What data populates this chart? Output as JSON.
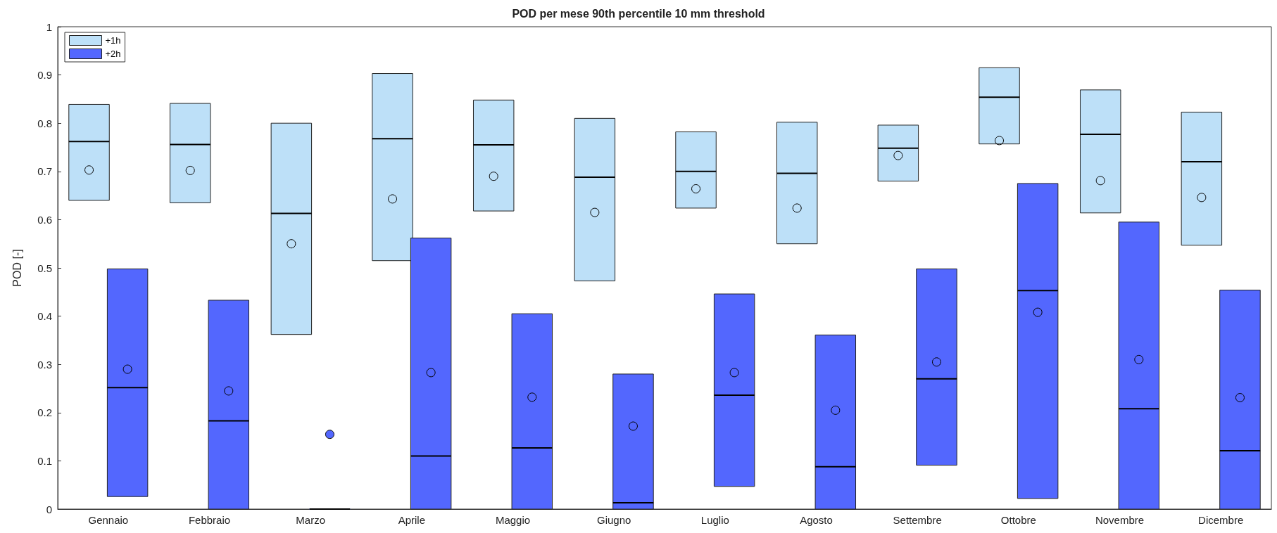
{
  "chart_data": {
    "type": "box",
    "title": "POD per mese 90th percentile 10 mm threshold",
    "ylabel": "POD [-]",
    "categories": [
      "Gennaio",
      "Febbraio",
      "Marzo",
      "Aprile",
      "Maggio",
      "Giugno",
      "Luglio",
      "Agosto",
      "Settembre",
      "Ottobre",
      "Novembre",
      "Dicembre"
    ],
    "series": [
      {
        "name": "+1h",
        "color": "#bde0f8",
        "boxes": [
          {
            "low": 0.64,
            "q1": 0.64,
            "median": 0.762,
            "q3": 0.839,
            "high": 0.839,
            "mean": 0.703
          },
          {
            "low": 0.635,
            "q1": 0.635,
            "median": 0.756,
            "q3": 0.841,
            "high": 0.841,
            "mean": 0.702
          },
          {
            "low": 0.362,
            "q1": 0.362,
            "median": 0.613,
            "q3": 0.8,
            "high": 0.8,
            "mean": 0.55
          },
          {
            "low": 0.515,
            "q1": 0.515,
            "median": 0.768,
            "q3": 0.903,
            "high": 0.903,
            "mean": 0.643
          },
          {
            "low": 0.618,
            "q1": 0.618,
            "median": 0.755,
            "q3": 0.848,
            "high": 0.848,
            "mean": 0.69
          },
          {
            "low": 0.473,
            "q1": 0.473,
            "median": 0.688,
            "q3": 0.81,
            "high": 0.81,
            "mean": 0.615
          },
          {
            "low": 0.624,
            "q1": 0.624,
            "median": 0.7,
            "q3": 0.782,
            "high": 0.782,
            "mean": 0.664
          },
          {
            "low": 0.55,
            "q1": 0.55,
            "median": 0.696,
            "q3": 0.802,
            "high": 0.802,
            "mean": 0.624
          },
          {
            "low": 0.68,
            "q1": 0.68,
            "median": 0.748,
            "q3": 0.796,
            "high": 0.796,
            "mean": 0.733
          },
          {
            "low": 0.757,
            "q1": 0.757,
            "median": 0.854,
            "q3": 0.915,
            "high": 0.915,
            "mean": 0.764
          },
          {
            "low": 0.614,
            "q1": 0.614,
            "median": 0.777,
            "q3": 0.869,
            "high": 0.869,
            "mean": 0.681
          },
          {
            "low": 0.547,
            "q1": 0.547,
            "median": 0.72,
            "q3": 0.823,
            "high": 0.823,
            "mean": 0.646
          }
        ]
      },
      {
        "name": "+2h",
        "color": "#5367fe",
        "boxes": [
          {
            "low": 0.026,
            "q1": 0.026,
            "median": 0.252,
            "q3": 0.498,
            "high": 0.498,
            "mean": 0.29
          },
          {
            "low": 0,
            "q1": 0,
            "median": 0.183,
            "q3": 0.433,
            "high": 0.433,
            "mean": 0.245
          },
          {
            "low": 0,
            "q1": 0,
            "median": 0,
            "q3": 0,
            "high": 0,
            "mean": 0.155
          },
          {
            "low": 0,
            "q1": 0,
            "median": 0.11,
            "q3": 0.562,
            "high": 0.562,
            "mean": 0.283
          },
          {
            "low": 0,
            "q1": 0,
            "median": 0.127,
            "q3": 0.405,
            "high": 0.405,
            "mean": 0.232
          },
          {
            "low": 0,
            "q1": 0,
            "median": 0.013,
            "q3": 0.28,
            "high": 0.28,
            "mean": 0.172
          },
          {
            "low": 0.047,
            "q1": 0.047,
            "median": 0.236,
            "q3": 0.446,
            "high": 0.446,
            "mean": 0.283
          },
          {
            "low": 0,
            "q1": 0,
            "median": 0.088,
            "q3": 0.361,
            "high": 0.361,
            "mean": 0.205
          },
          {
            "low": 0.091,
            "q1": 0.091,
            "median": 0.27,
            "q3": 0.498,
            "high": 0.498,
            "mean": 0.305
          },
          {
            "low": 0.022,
            "q1": 0.022,
            "median": 0.453,
            "q3": 0.675,
            "high": 0.675,
            "mean": 0.408
          },
          {
            "low": 0,
            "q1": 0,
            "median": 0.208,
            "q3": 0.595,
            "high": 0.595,
            "mean": 0.31
          },
          {
            "low": 0,
            "q1": 0,
            "median": 0.121,
            "q3": 0.454,
            "high": 0.454,
            "mean": 0.231
          }
        ]
      }
    ],
    "ylim": [
      0,
      1
    ],
    "yticks": [
      0,
      0.1,
      0.2,
      0.3,
      0.4,
      0.5,
      0.6,
      0.7,
      0.8,
      0.9,
      1
    ],
    "legend": "top left",
    "grid": false,
    "marker": "circle"
  }
}
